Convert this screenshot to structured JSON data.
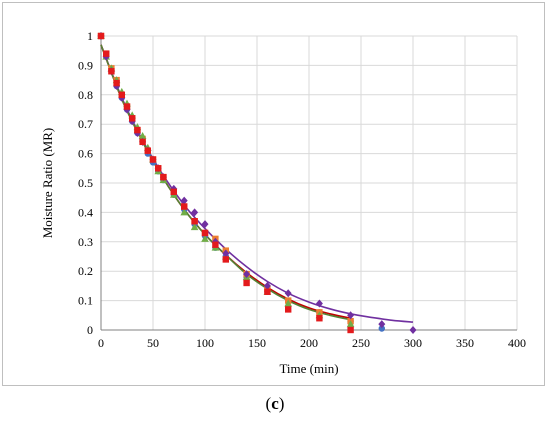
{
  "panel": {
    "open": "(",
    "letter": "c",
    "close": ")"
  },
  "chart_data": {
    "type": "scatter",
    "xlabel": "Time (min)",
    "ylabel": "Moisture Ratio (MR)",
    "xlim": [
      0,
      400
    ],
    "ylim": [
      0,
      1
    ],
    "xticks": [
      0,
      50,
      100,
      150,
      200,
      250,
      300,
      350,
      400
    ],
    "yticks": [
      0,
      0.1,
      0.2,
      0.3,
      0.4,
      0.5,
      0.6,
      0.7,
      0.8,
      0.9,
      1
    ],
    "grid": true,
    "legend": "none",
    "series": [
      {
        "marker": "circle",
        "color": "#4472c4",
        "x": [
          0,
          5,
          10,
          15,
          20,
          25,
          30,
          35,
          40,
          45,
          50,
          55,
          60,
          70,
          80,
          90,
          100,
          110,
          120,
          140,
          160,
          180,
          210,
          240,
          270
        ],
        "y": [
          1,
          0.93,
          0.88,
          0.83,
          0.79,
          0.75,
          0.71,
          0.67,
          0.64,
          0.6,
          0.57,
          0.54,
          0.51,
          0.46,
          0.41,
          0.36,
          0.32,
          0.28,
          0.25,
          0.18,
          0.13,
          0.1,
          0.06,
          0.03,
          0.005
        ]
      },
      {
        "marker": "square",
        "color": "#ed7d31",
        "x": [
          0,
          5,
          10,
          15,
          20,
          25,
          30,
          35,
          40,
          45,
          50,
          55,
          60,
          70,
          80,
          90,
          100,
          110,
          120,
          140,
          160,
          180,
          210,
          240
        ],
        "y": [
          1,
          0.94,
          0.89,
          0.85,
          0.8,
          0.76,
          0.72,
          0.68,
          0.65,
          0.61,
          0.58,
          0.55,
          0.52,
          0.47,
          0.42,
          0.37,
          0.33,
          0.31,
          0.27,
          0.19,
          0.14,
          0.1,
          0.06,
          0.03
        ]
      },
      {
        "marker": "triangle",
        "color": "#70ad47",
        "x": [
          0,
          5,
          10,
          15,
          20,
          25,
          30,
          35,
          40,
          45,
          50,
          55,
          60,
          70,
          80,
          90,
          100,
          110,
          120,
          140,
          160,
          180,
          210,
          240
        ],
        "y": [
          1,
          0.93,
          0.89,
          0.85,
          0.81,
          0.77,
          0.73,
          0.69,
          0.66,
          0.62,
          0.58,
          0.54,
          0.51,
          0.46,
          0.4,
          0.35,
          0.31,
          0.28,
          0.25,
          0.18,
          0.13,
          0.09,
          0.05,
          0.02
        ]
      },
      {
        "marker": "diamond",
        "color": "#7030a0",
        "x": [
          0,
          5,
          10,
          15,
          20,
          25,
          30,
          35,
          40,
          45,
          50,
          55,
          60,
          70,
          80,
          90,
          100,
          110,
          120,
          140,
          160,
          180,
          210,
          240,
          270,
          300
        ],
        "y": [
          1,
          0.93,
          0.88,
          0.83,
          0.79,
          0.75,
          0.71,
          0.67,
          0.64,
          0.61,
          0.58,
          0.55,
          0.52,
          0.48,
          0.44,
          0.4,
          0.36,
          0.3,
          0.26,
          0.19,
          0.15,
          0.125,
          0.09,
          0.05,
          0.02,
          0.0
        ]
      },
      {
        "marker": "square",
        "color": "#e31a1c",
        "x": [
          0,
          5,
          10,
          15,
          20,
          25,
          30,
          35,
          40,
          45,
          50,
          55,
          60,
          70,
          80,
          90,
          100,
          110,
          120,
          140,
          160,
          180,
          210,
          240
        ],
        "y": [
          1,
          0.94,
          0.88,
          0.84,
          0.8,
          0.76,
          0.72,
          0.68,
          0.64,
          0.61,
          0.58,
          0.55,
          0.52,
          0.47,
          0.42,
          0.37,
          0.33,
          0.29,
          0.24,
          0.16,
          0.13,
          0.07,
          0.04,
          0.0
        ]
      }
    ],
    "fits": [
      {
        "color": "#7030a0",
        "x": [
          0,
          20,
          40,
          60,
          80,
          100,
          120,
          140,
          160,
          180,
          200,
          220,
          240,
          260,
          280,
          300
        ],
        "y": [
          0.97,
          0.79,
          0.645,
          0.525,
          0.425,
          0.345,
          0.275,
          0.215,
          0.165,
          0.125,
          0.095,
          0.072,
          0.055,
          0.043,
          0.033,
          0.027
        ]
      },
      {
        "color": "#c00000",
        "x": [
          0,
          20,
          40,
          60,
          80,
          100,
          120,
          140,
          160,
          180,
          200,
          220,
          240
        ],
        "y": [
          0.97,
          0.785,
          0.64,
          0.515,
          0.41,
          0.325,
          0.255,
          0.195,
          0.145,
          0.105,
          0.075,
          0.055,
          0.04
        ]
      },
      {
        "color": "#548235",
        "x": [
          0,
          20,
          40,
          60,
          80,
          100,
          120,
          140,
          160,
          180,
          200,
          220,
          240
        ],
        "y": [
          0.97,
          0.785,
          0.64,
          0.515,
          0.41,
          0.325,
          0.255,
          0.19,
          0.14,
          0.1,
          0.07,
          0.05,
          0.035
        ]
      }
    ]
  }
}
